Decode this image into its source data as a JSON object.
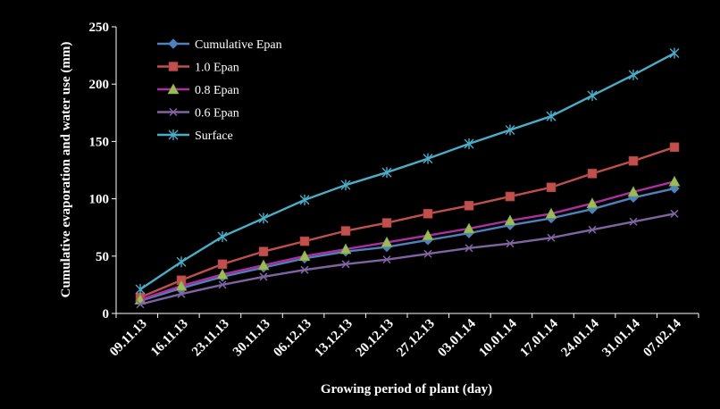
{
  "chart_data": {
    "type": "line",
    "title": "",
    "xlabel": "Growing period of plant (day)",
    "ylabel": "Cumulative  evaporation and water use (mm)",
    "ylim": [
      0,
      250
    ],
    "yticks": [
      0,
      50,
      100,
      150,
      200,
      250
    ],
    "grid": false,
    "legend_position": "top-left",
    "categories": [
      "09.11.13",
      "16.11.13",
      "23.11.13",
      "30.11.13",
      "06.12.13",
      "13.12.13",
      "20.12.13",
      "27.12.13",
      "03.01.14",
      "10.01.14",
      "17.01.14",
      "24.01.14",
      "31.01.14",
      "07.02.14"
    ],
    "series": [
      {
        "name": "Cumulative Epan",
        "color": "#4f81bd",
        "marker": "diamond",
        "values": [
          11,
          22,
          32,
          40,
          48,
          54,
          58,
          64,
          70,
          77,
          83,
          91,
          101,
          109
        ]
      },
      {
        "name": "1.0 Epan",
        "color": "#c0504d",
        "marker": "square",
        "values": [
          14,
          29,
          43,
          54,
          63,
          72,
          79,
          87,
          94,
          102,
          110,
          122,
          133,
          145
        ]
      },
      {
        "name": "0.8 Epan",
        "color": "#9bbb59",
        "line_color": "#b02fa0",
        "marker": "triangle",
        "values": [
          12,
          24,
          34,
          42,
          50,
          56,
          62,
          68,
          74,
          81,
          87,
          96,
          106,
          115
        ]
      },
      {
        "name": "0.6 Epan",
        "color": "#8064a2",
        "marker": "x",
        "values": [
          8,
          17,
          25,
          32,
          38,
          43,
          47,
          52,
          57,
          61,
          66,
          73,
          80,
          87
        ]
      },
      {
        "name": "Surface",
        "color": "#4bacc6",
        "marker": "star",
        "values": [
          21,
          45,
          67,
          83,
          99,
          112,
          123,
          135,
          148,
          160,
          172,
          190,
          208,
          227
        ]
      }
    ]
  }
}
